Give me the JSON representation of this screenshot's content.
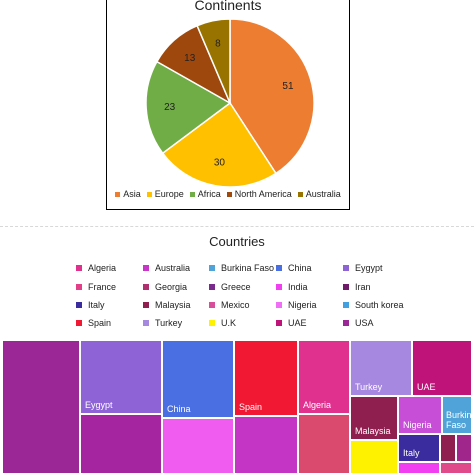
{
  "chart_data": [
    {
      "type": "pie",
      "title": "Continents",
      "legend_position": "bottom",
      "slices": [
        {
          "label": "Asia",
          "value": 51,
          "color": "#ED7D31"
        },
        {
          "label": "Europe",
          "value": 30,
          "color": "#FFC000"
        },
        {
          "label": "Africa",
          "value": 23,
          "color": "#70AD47"
        },
        {
          "label": "North America",
          "value": 13,
          "color": "#9E480E"
        },
        {
          "label": "Australia",
          "value": 8,
          "color": "#997300"
        }
      ]
    },
    {
      "type": "treemap",
      "title": "Countries",
      "legend_position": "top",
      "legend": [
        {
          "label": "Algeria",
          "color": "#E0318F"
        },
        {
          "label": "Australia",
          "color": "#C935C8"
        },
        {
          "label": "Burkina Faso",
          "color": "#4FA3D8"
        },
        {
          "label": "China",
          "color": "#4A6FE3"
        },
        {
          "label": "Eygypt",
          "color": "#8E63D6"
        },
        {
          "label": "France",
          "color": "#E33E88"
        },
        {
          "label": "Georgia",
          "color": "#B0306F"
        },
        {
          "label": "Greece",
          "color": "#7A2A8C"
        },
        {
          "label": "India",
          "color": "#F03EF0"
        },
        {
          "label": "Iran",
          "color": "#701A6A"
        },
        {
          "label": "Italy",
          "color": "#3A2B9E"
        },
        {
          "label": "Malaysia",
          "color": "#8E1F4F"
        },
        {
          "label": "Mexico",
          "color": "#D94E9B"
        },
        {
          "label": "Nigeria",
          "color": "#F06EF5"
        },
        {
          "label": "South korea",
          "color": "#43A0E0"
        },
        {
          "label": "Spain",
          "color": "#F01833"
        },
        {
          "label": "Turkey",
          "color": "#A688E0"
        },
        {
          "label": "U.K",
          "color": "#FFF200"
        },
        {
          "label": "UAE",
          "color": "#C0137A"
        },
        {
          "label": "USA",
          "color": "#9A2795"
        }
      ],
      "tiles": [
        {
          "label": "",
          "color": "#9A2795"
        },
        {
          "label": "Eygypt",
          "color": "#8E63D6"
        },
        {
          "label": "",
          "color": "#A524A0"
        },
        {
          "label": "China",
          "color": "#4A6FE3"
        },
        {
          "label": "",
          "color": "#F05CF0"
        },
        {
          "label": "Spain",
          "color": "#F01833"
        },
        {
          "label": "",
          "color": "#C535C5"
        },
        {
          "label": "Algeria",
          "color": "#E0318F"
        },
        {
          "label": "",
          "color": "#D94A6E"
        },
        {
          "label": "Turkey",
          "color": "#A688E0"
        },
        {
          "label": "UAE",
          "color": "#C0137A"
        },
        {
          "label": "Malaysia",
          "color": "#8E1F4F"
        },
        {
          "label": "",
          "color": "#FFF200"
        },
        {
          "label": "Nigeria",
          "color": "#C74FD8"
        },
        {
          "label": "Burkina\nFaso",
          "color": "#4FA3D8"
        },
        {
          "label": "Italy",
          "color": "#3A2B9E"
        },
        {
          "label": "",
          "color": "#8E1F4F"
        },
        {
          "label": "",
          "color": "#A0268C"
        },
        {
          "label": "",
          "color": "#F03EF0"
        },
        {
          "label": "",
          "color": "#E04A8A"
        }
      ]
    }
  ]
}
